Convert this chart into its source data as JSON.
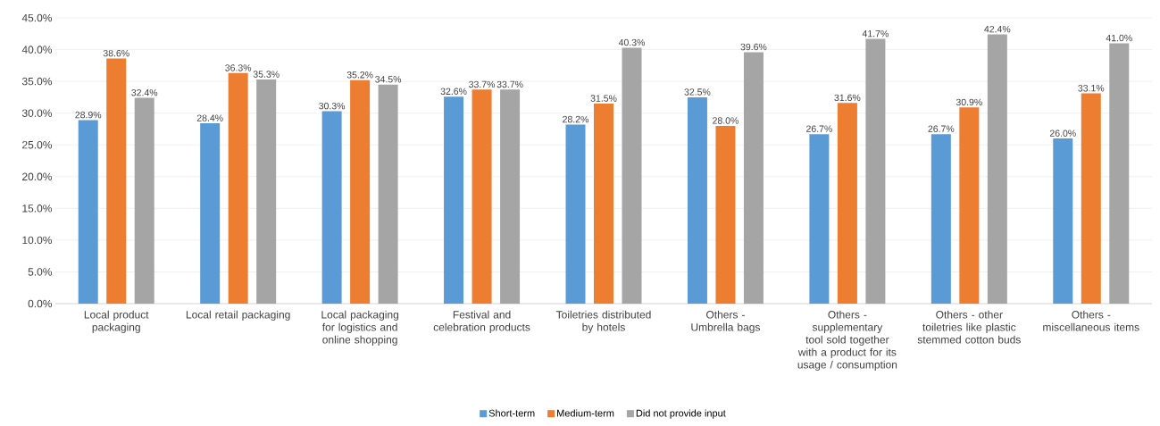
{
  "chart_data": {
    "type": "bar",
    "categories": [
      "Local product packaging",
      "Local retail packaging",
      "Local packaging for logistics and online shopping",
      "Festival and celebration products",
      "Toiletries distributed by hotels",
      "Others - Umbrella bags",
      "Others - supplementary tool sold together with a product for its usage / consumption",
      "Others - other toiletries like plastic stemmed cotton buds",
      "Others - miscellaneous items"
    ],
    "series": [
      {
        "name": "Short-term",
        "color": "#5b9bd5",
        "values": [
          28.9,
          28.4,
          30.3,
          32.6,
          28.2,
          32.5,
          26.7,
          26.7,
          26.0
        ],
        "value_labels": [
          "28.9%",
          "28.4%",
          "30.3%",
          "32.6%",
          "28.2%",
          "32.5%",
          "26.7%",
          "26.7%",
          "26.0%"
        ]
      },
      {
        "name": "Medium-term",
        "color": "#ed7d31",
        "values": [
          38.6,
          36.3,
          35.2,
          33.7,
          31.5,
          28.0,
          31.6,
          30.9,
          33.1
        ],
        "value_labels": [
          "38.6%",
          "36.3%",
          "35.2%",
          "33.7%",
          "31.5%",
          "28.0%",
          "31.6%",
          "30.9%",
          "33.1%"
        ]
      },
      {
        "name": "Did not provide input",
        "color": "#a5a5a5",
        "values": [
          32.4,
          35.3,
          34.5,
          33.7,
          40.3,
          39.6,
          41.7,
          42.4,
          41.0
        ],
        "value_labels": [
          "32.4%",
          "35.3%",
          "34.5%",
          "33.7%",
          "40.3%",
          "39.6%",
          "41.7%",
          "42.4%",
          "41.0%"
        ]
      }
    ],
    "ylim": [
      0,
      45
    ],
    "yticks": [
      {
        "value": 0,
        "label": "0.0%"
      },
      {
        "value": 5,
        "label": "5.0%"
      },
      {
        "value": 10,
        "label": "10.0%"
      },
      {
        "value": 15,
        "label": "15.0%"
      },
      {
        "value": 20,
        "label": "20.0%"
      },
      {
        "value": 25,
        "label": "25.0%"
      },
      {
        "value": 30,
        "label": "30.0%"
      },
      {
        "value": 35,
        "label": "35.0%"
      },
      {
        "value": 40,
        "label": "40.0%"
      },
      {
        "value": 45,
        "label": "45.0%"
      }
    ],
    "grid": "y",
    "legend": "bottom"
  }
}
